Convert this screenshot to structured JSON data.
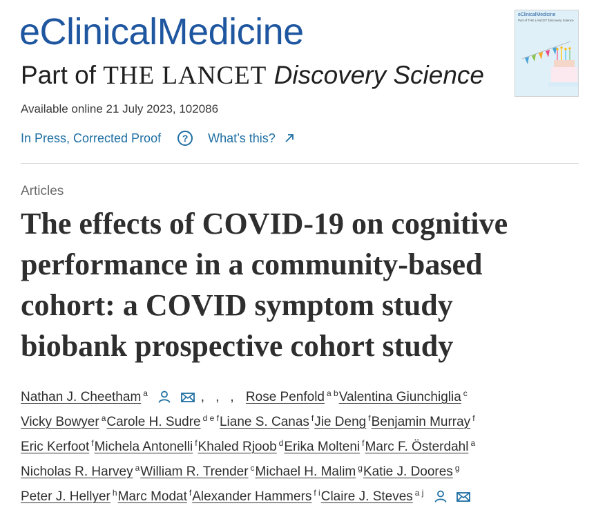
{
  "journal": {
    "title": "eClinicalMedicine",
    "subtitle_part": "Part of ",
    "subtitle_lancet": "THE LANCET",
    "subtitle_discovery": "Discovery Science"
  },
  "cover": {
    "title": "eClinicalMedicine",
    "sub": "Part of THE LANCET Discovery Science"
  },
  "availability": "Available online 21 July 2023, 102086",
  "status": {
    "in_press": "In Press, Corrected Proof",
    "whats_this": "What’s this?"
  },
  "section": "Articles",
  "article_title_lines": [
    "The effects of COVID-19 on cognitive",
    "performance in a community-based",
    "cohort: a COVID symptom study",
    "biobank prospective cohort study"
  ],
  "authors": [
    {
      "name": "Nathan J. Cheetham",
      "aff": "a"
    },
    {
      "name": "Rose Penfold",
      "aff": "a b"
    },
    {
      "name": "Valentina Giunchiglia",
      "aff": "c"
    },
    {
      "name": "Vicky Bowyer",
      "aff": "a"
    },
    {
      "name": "Carole H. Sudre",
      "aff": "d e f"
    },
    {
      "name": "Liane S. Canas",
      "aff": "f"
    },
    {
      "name": "Jie Deng",
      "aff": "f"
    },
    {
      "name": "Benjamin Murray",
      "aff": "f"
    },
    {
      "name": "Eric Kerfoot",
      "aff": "f"
    },
    {
      "name": "Michela Antonelli",
      "aff": "f"
    },
    {
      "name": "Khaled Rjoob",
      "aff": "d"
    },
    {
      "name": "Erika Molteni",
      "aff": "f"
    },
    {
      "name": "Marc F. Österdahl",
      "aff": "a"
    },
    {
      "name": "Nicholas R. Harvey",
      "aff": "a"
    },
    {
      "name": "William R. Trender",
      "aff": "c"
    },
    {
      "name": "Michael H. Malim",
      "aff": "g"
    },
    {
      "name": "Katie J. Doores",
      "aff": "g"
    },
    {
      "name": "Peter J. Hellyer",
      "aff": "h"
    },
    {
      "name": "Marc Modat",
      "aff": "f"
    },
    {
      "name": "Alexander Hammers",
      "aff": "f i"
    },
    {
      "name": "Claire J. Steves",
      "aff": "a j"
    }
  ],
  "punctuation": {
    "comma": ","
  },
  "colors": {
    "brand_blue": "#1f56a0",
    "link_blue": "#1e6fa3",
    "text": "#2e2e2e"
  }
}
